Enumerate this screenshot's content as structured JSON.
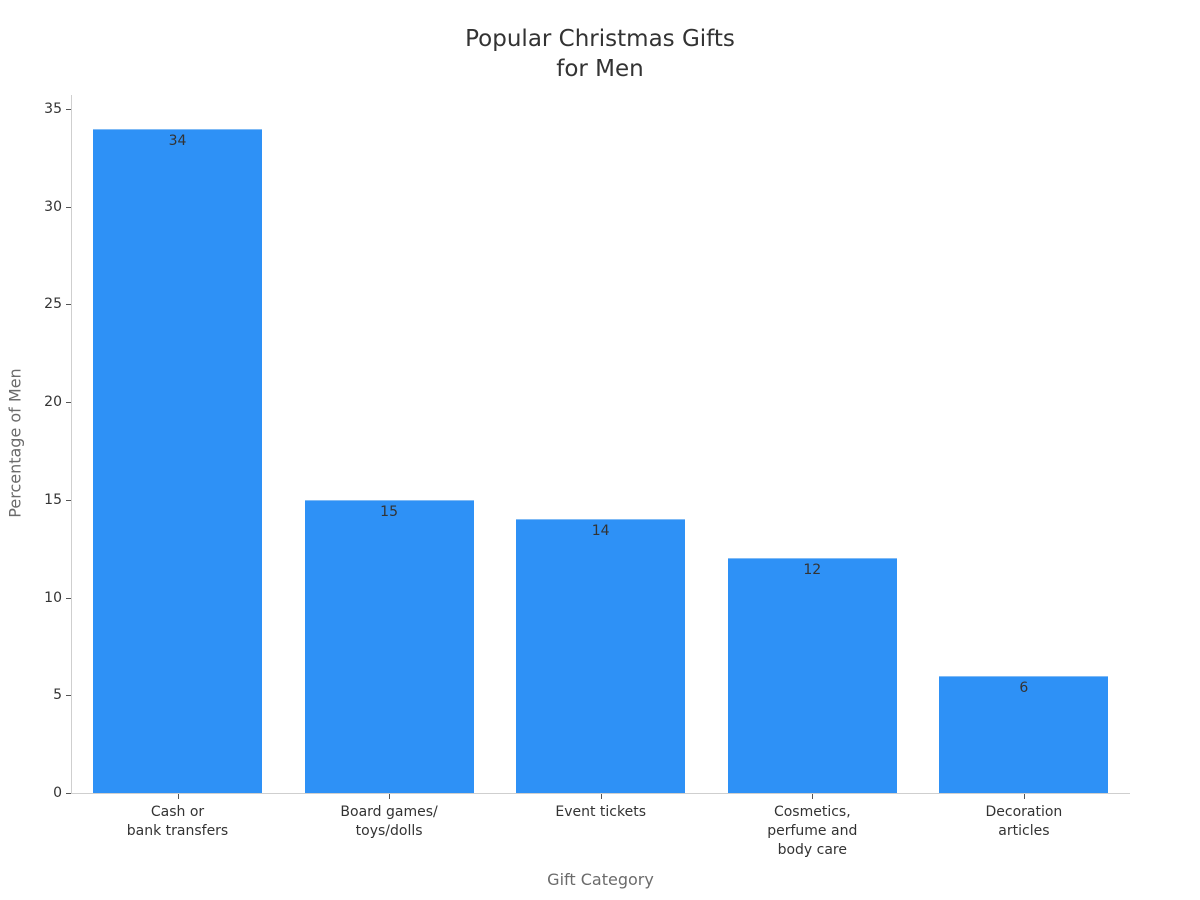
{
  "chart_data": {
    "type": "bar",
    "title": "Popular Christmas Gifts\nfor Men",
    "title_lines": [
      "Popular Christmas Gifts",
      "for Men"
    ],
    "xlabel": "Gift Category",
    "ylabel": "Percentage of Men",
    "categories": [
      "Cash or\nbank transfers",
      "Board games/\ntoys/dolls",
      "Event tickets",
      "Cosmetics,\nperfume and\nbody care",
      "Decoration\narticles"
    ],
    "values": [
      34,
      15,
      14,
      12,
      6
    ],
    "data_labels": [
      "34",
      "15",
      "14",
      "12",
      "6"
    ],
    "ylim": [
      0,
      35
    ],
    "yticks": [
      0,
      5,
      10,
      15,
      20,
      25,
      30,
      35
    ],
    "grid": false,
    "legend": null,
    "bar_color": "#2e91f6"
  }
}
